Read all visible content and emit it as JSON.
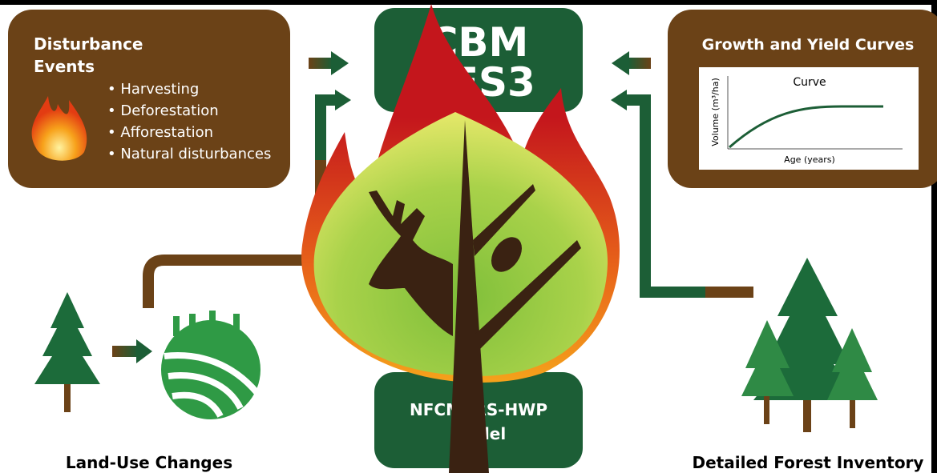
{
  "disturbance": {
    "title_lines": [
      "Disturbance",
      "Events"
    ],
    "items": [
      "• Harvesting",
      "• Deforestation",
      "• Afforestation",
      "• Natural disturbances"
    ]
  },
  "growth": {
    "title": "Growth and Yield Curves",
    "chart": {
      "title": "Curve",
      "y_label": "Volume (m³/ha)",
      "x_label": "Age (years)"
    }
  },
  "center_top": {
    "lines": [
      "CBM",
      "CFS3"
    ]
  },
  "center_bottom": {
    "lines": [
      "NFCMARS-HWP",
      "Model"
    ]
  },
  "land_use": {
    "label": "Land-Use Changes"
  },
  "inventory": {
    "label": "Detailed Forest Inventory"
  }
}
